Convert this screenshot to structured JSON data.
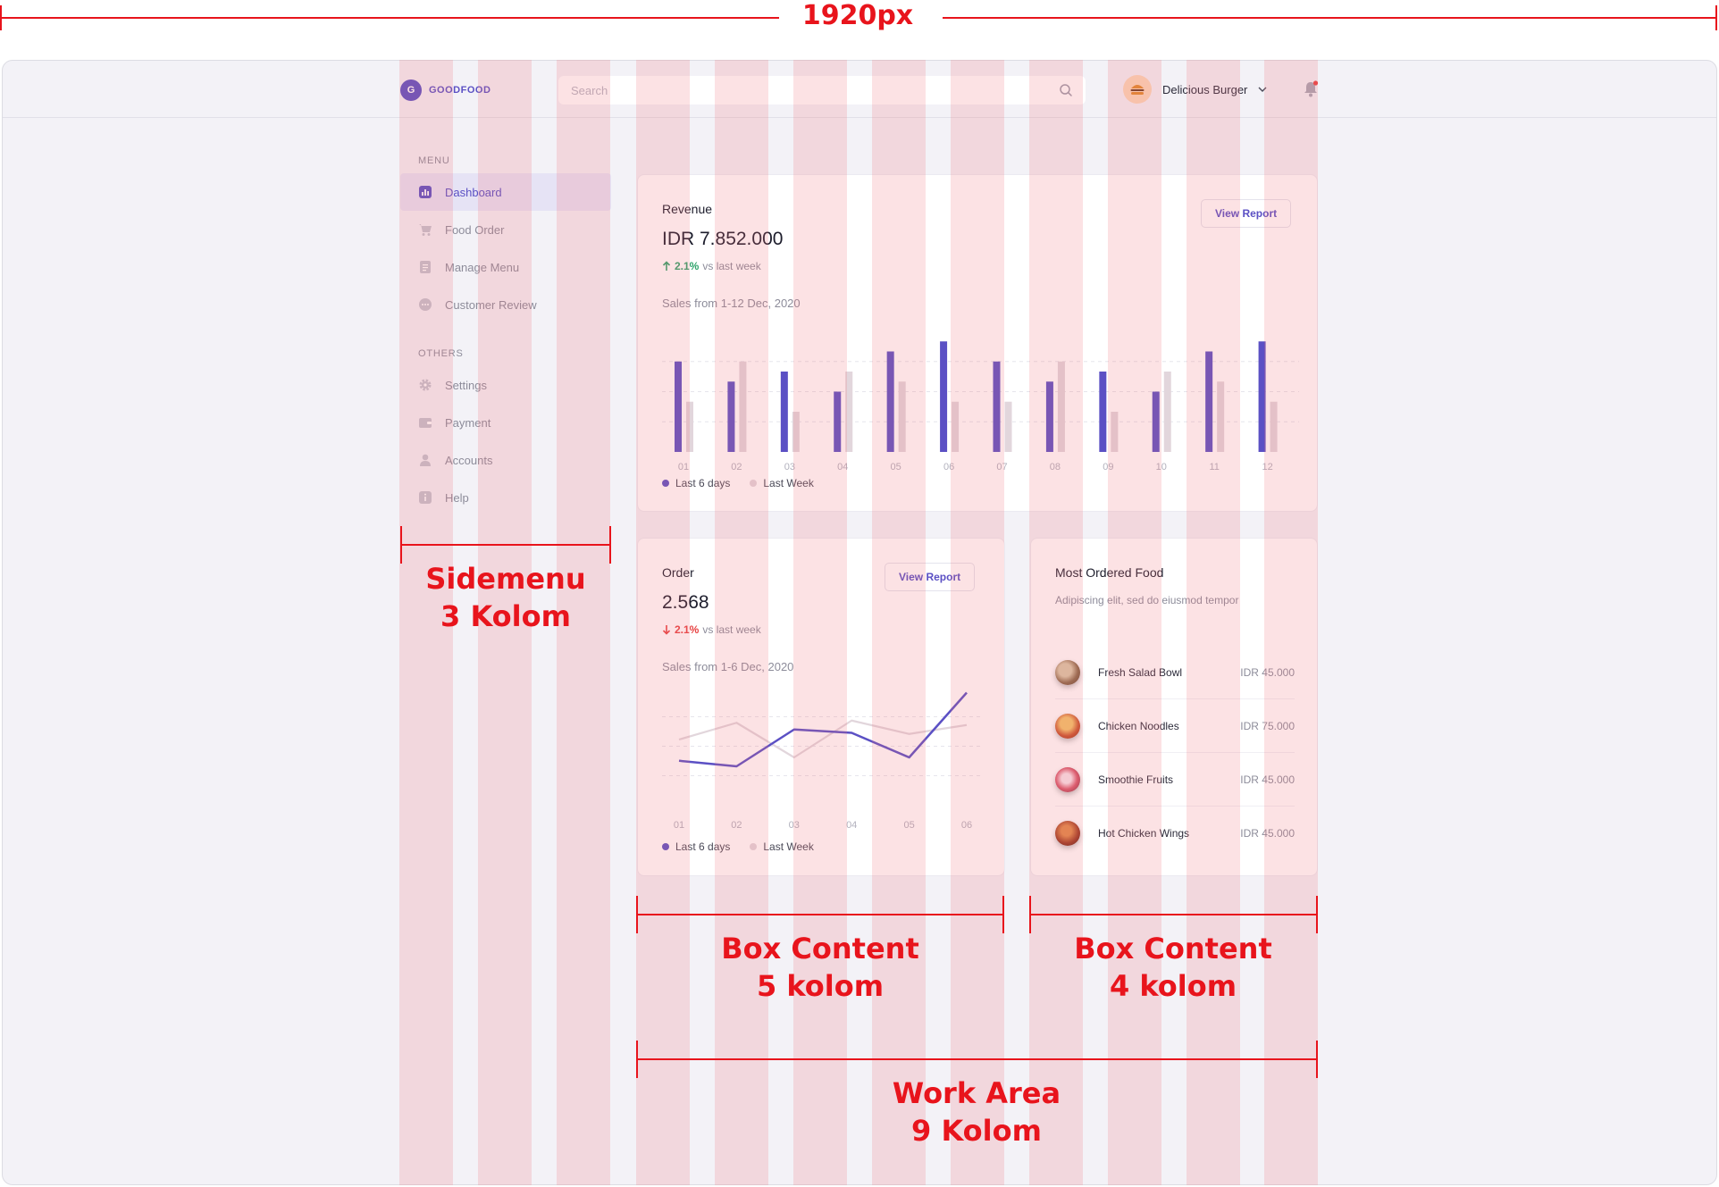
{
  "measure": {
    "label": "1920px"
  },
  "brand": {
    "logo_letter": "G",
    "name": "GOODFOOD"
  },
  "search": {
    "placeholder": "Search"
  },
  "user": {
    "name": "Delicious Burger"
  },
  "sidebar": {
    "menu_title": "MENU",
    "others_title": "OTHERS",
    "menu_items": [
      {
        "label": "Dashboard",
        "icon": "chart-icon",
        "active": true
      },
      {
        "label": "Food Order",
        "icon": "cart-icon"
      },
      {
        "label": "Manage Menu",
        "icon": "document-icon"
      },
      {
        "label": "Customer Review",
        "icon": "chat-icon"
      }
    ],
    "other_items": [
      {
        "label": "Settings",
        "icon": "gear-icon"
      },
      {
        "label": "Payment",
        "icon": "wallet-icon"
      },
      {
        "label": "Accounts",
        "icon": "user-icon"
      },
      {
        "label": "Help",
        "icon": "info-icon"
      }
    ]
  },
  "revenue": {
    "title": "Revenue",
    "value": "IDR 7.852.000",
    "change_pct": "2.1%",
    "change_text": "vs last week",
    "subtitle": "Sales from 1-12 Dec, 2020",
    "button": "View Report",
    "legend": [
      "Last 6 days",
      "Last Week"
    ]
  },
  "order": {
    "title": "Order",
    "value": "2.568",
    "change_pct": "2.1%",
    "change_text": "vs last week",
    "subtitle": "Sales from 1-6 Dec, 2020",
    "button": "View Report",
    "legend": [
      "Last 6 days",
      "Last Week"
    ]
  },
  "food": {
    "title": "Most Ordered Food",
    "description": "Adipiscing elit, sed do eiusmod tempor",
    "items": [
      {
        "name": "Fresh Salad Bowl",
        "price": "IDR 45.000",
        "color": "#8a6a4a"
      },
      {
        "name": "Chicken Noodles",
        "price": "IDR 75.000",
        "color": "#c8552e"
      },
      {
        "name": "Smoothie Fruits",
        "price": "IDR 45.000",
        "color": "#d85a6e"
      },
      {
        "name": "Hot Chicken Wings",
        "price": "IDR 45.000",
        "color": "#9c3a22"
      }
    ]
  },
  "annotations": {
    "sidemenu": [
      "Sidemenu",
      "3 Kolom"
    ],
    "box1": [
      "Box Content",
      "5 kolom"
    ],
    "box2": [
      "Box Content",
      "4 kolom"
    ],
    "work": [
      "Work Area",
      "9 Kolom"
    ]
  },
  "colors": {
    "accent": "#5b50c4",
    "secondary_series": "#e2d6dc",
    "up": "#2fa36b",
    "down": "#e74343",
    "annotation": "#e8141c"
  },
  "chart_data": [
    {
      "type": "bar",
      "categories": [
        "01",
        "02",
        "03",
        "04",
        "05",
        "06",
        "07",
        "08",
        "09",
        "10",
        "11",
        "12"
      ],
      "series": [
        {
          "name": "Last 6 days",
          "values": [
            9,
            7,
            8,
            6,
            10,
            11,
            9,
            7,
            8,
            6,
            10,
            11
          ]
        },
        {
          "name": "Last Week",
          "values": [
            5,
            9,
            4,
            8,
            7,
            5,
            5,
            9,
            4,
            8,
            7,
            5
          ]
        }
      ],
      "ylim": [
        0,
        12
      ],
      "grid": true
    },
    {
      "type": "line",
      "categories": [
        "01",
        "02",
        "03",
        "04",
        "05",
        "06"
      ],
      "series": [
        {
          "name": "Last 6 days",
          "values": [
            4.1,
            3.6,
            6.9,
            6.6,
            4.4,
            10.2
          ]
        },
        {
          "name": "Last Week",
          "values": [
            6.0,
            7.5,
            4.4,
            7.7,
            6.5,
            7.3
          ]
        }
      ],
      "ylim": [
        0,
        12
      ],
      "grid": true
    }
  ]
}
